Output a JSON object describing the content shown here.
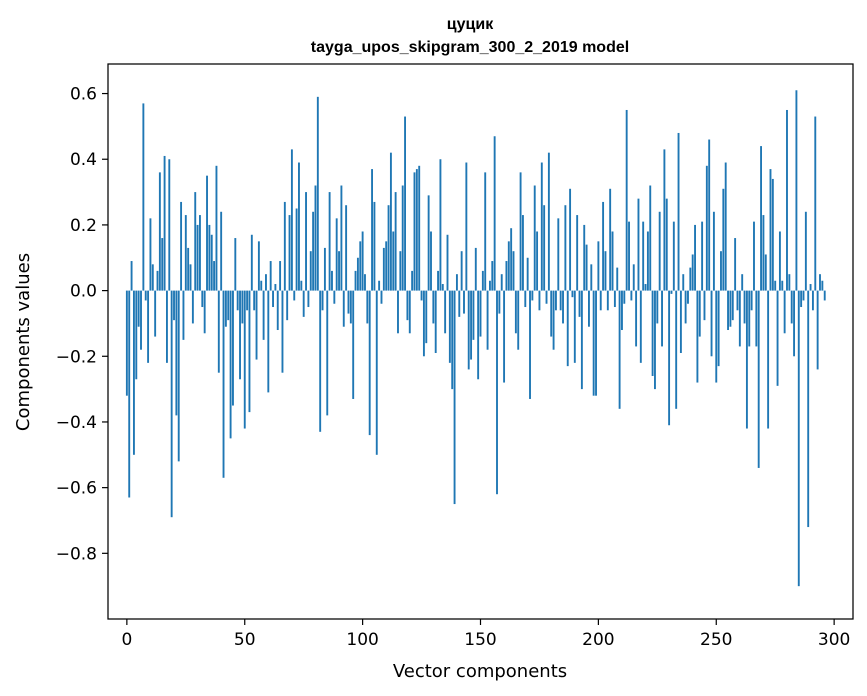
{
  "chart_data": {
    "type": "bar",
    "title": "цуцик",
    "subtitle": "tayga_upos_skipgram_300_2_2019 model",
    "xlabel": "Vector components",
    "ylabel": "Components values",
    "xlim": [
      -8,
      308
    ],
    "ylim": [
      -1.0,
      0.69
    ],
    "xticks": [
      0,
      50,
      100,
      150,
      200,
      250,
      300
    ],
    "xtick_labels": [
      "0",
      "50",
      "100",
      "150",
      "200",
      "250",
      "300"
    ],
    "yticks": [
      -0.8,
      -0.6,
      -0.4,
      -0.2,
      0.0,
      0.2,
      0.4,
      0.6
    ],
    "ytick_labels": [
      "−0.8",
      "−0.6",
      "−0.4",
      "−0.2",
      "0.0",
      "0.2",
      "0.4",
      "0.6"
    ],
    "bar_color": "#1f77b4",
    "grid": false,
    "x": "0..299",
    "values": [
      -0.32,
      -0.63,
      0.09,
      -0.5,
      -0.27,
      -0.11,
      -0.18,
      0.57,
      -0.03,
      -0.22,
      0.22,
      0.08,
      -0.14,
      0.06,
      0.36,
      0.16,
      0.41,
      -0.22,
      0.4,
      -0.69,
      -0.09,
      -0.38,
      -0.52,
      0.27,
      -0.15,
      0.23,
      0.13,
      0.08,
      -0.1,
      0.3,
      0.2,
      0.23,
      -0.05,
      -0.13,
      0.35,
      0.2,
      0.17,
      0.09,
      0.38,
      -0.25,
      0.24,
      -0.57,
      -0.11,
      -0.09,
      -0.45,
      -0.35,
      0.16,
      -0.06,
      -0.27,
      -0.1,
      -0.42,
      -0.06,
      -0.37,
      0.17,
      -0.06,
      -0.21,
      0.15,
      0.03,
      -0.15,
      0.05,
      -0.31,
      0.09,
      -0.05,
      0.02,
      -0.12,
      0.09,
      -0.25,
      0.27,
      -0.09,
      0.23,
      0.43,
      -0.03,
      0.25,
      0.39,
      0.03,
      -0.08,
      0.3,
      -0.05,
      0.12,
      0.24,
      0.32,
      0.59,
      -0.43,
      -0.06,
      0.13,
      -0.38,
      0.3,
      0.06,
      -0.04,
      0.22,
      0.12,
      0.32,
      -0.11,
      0.26,
      -0.07,
      -0.1,
      -0.33,
      0.06,
      0.1,
      0.15,
      0.18,
      0.05,
      -0.1,
      -0.44,
      0.37,
      0.27,
      -0.5,
      0.03,
      -0.04,
      0.13,
      0.15,
      0.26,
      0.42,
      0.18,
      0.3,
      -0.13,
      0.12,
      0.32,
      0.53,
      -0.09,
      -0.13,
      0.06,
      0.36,
      0.37,
      0.38,
      -0.03,
      -0.2,
      -0.16,
      0.29,
      0.18,
      -0.1,
      -0.19,
      0.06,
      0.4,
      0.02,
      -0.13,
      0.17,
      -0.22,
      -0.3,
      -0.65,
      0.05,
      -0.08,
      0.12,
      -0.07,
      0.39,
      -0.24,
      -0.21,
      -0.15,
      0.13,
      -0.27,
      -0.14,
      0.06,
      0.36,
      -0.18,
      0.03,
      0.09,
      0.47,
      -0.62,
      -0.07,
      0.05,
      -0.28,
      0.09,
      0.15,
      0.19,
      0.12,
      -0.13,
      -0.18,
      0.36,
      0.23,
      -0.05,
      0.1,
      -0.33,
      -0.03,
      0.32,
      0.18,
      -0.06,
      0.39,
      0.26,
      -0.04,
      0.42,
      -0.14,
      -0.18,
      -0.06,
      0.22,
      -0.06,
      -0.1,
      0.26,
      -0.23,
      0.31,
      -0.02,
      -0.22,
      0.23,
      -0.08,
      -0.3,
      0.2,
      0.14,
      -0.11,
      0.08,
      -0.32,
      -0.32,
      0.15,
      -0.06,
      0.27,
      0.12,
      -0.06,
      0.31,
      0.18,
      -0.05,
      0.07,
      -0.36,
      -0.12,
      -0.04,
      0.55,
      0.21,
      -0.03,
      0.08,
      -0.17,
      0.28,
      -0.22,
      0.21,
      0.02,
      0.18,
      0.32,
      -0.26,
      -0.3,
      -0.1,
      0.24,
      -0.17,
      0.43,
      0.28,
      -0.41,
      -0.01,
      0.21,
      -0.36,
      0.48,
      -0.19,
      0.05,
      -0.1,
      -0.04,
      0.07,
      0.11,
      0.2,
      -0.28,
      -0.14,
      0.21,
      -0.09,
      0.38,
      0.46,
      -0.2,
      0.24,
      -0.28,
      -0.23,
      0.12,
      0.31,
      0.39,
      -0.12,
      -0.11,
      -0.09,
      0.16,
      -0.06,
      -0.17,
      0.05,
      -0.1,
      -0.42,
      -0.17,
      -0.06,
      0.21,
      -0.17,
      -0.54,
      0.44,
      0.23,
      0.11,
      -0.42,
      0.37,
      0.34,
      0.03,
      -0.29,
      0.18,
      0.03,
      -0.13,
      0.55,
      0.05,
      -0.1,
      -0.2,
      0.61,
      -0.9,
      -0.05,
      -0.03,
      0.24,
      -0.72,
      0.02,
      -0.06,
      0.53,
      -0.24,
      0.05,
      0.03,
      -0.03
    ]
  }
}
